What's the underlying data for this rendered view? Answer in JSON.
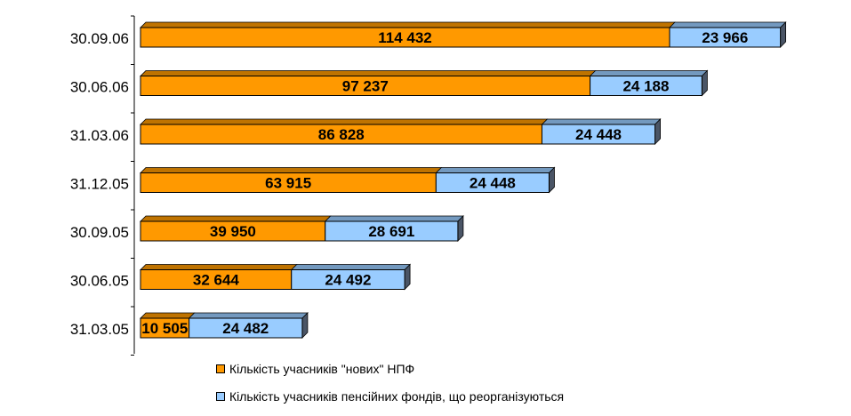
{
  "chart_data": {
    "type": "bar",
    "orientation": "horizontal",
    "stacked": true,
    "three_d": true,
    "categories": [
      "30.09.06",
      "30.06.06",
      "31.03.06",
      "31.12.05",
      "30.09.05",
      "30.06.05",
      "31.03.05"
    ],
    "series": [
      {
        "name": "Кількість учасників \"нових\" НПФ",
        "color": "#FF9900",
        "values": [
          114432,
          97237,
          86828,
          63915,
          39950,
          32644,
          10505
        ],
        "labels": [
          "114 432",
          "97 237",
          "86 828",
          "63 915",
          "39 950",
          "32 644",
          "10 505"
        ]
      },
      {
        "name": "Кількість учасників пенсійних фондів, що реорганізуються",
        "color": "#99CCFF",
        "values": [
          23966,
          24188,
          24448,
          24448,
          28691,
          24492,
          24482
        ],
        "labels": [
          "23 966",
          "24 188",
          "24 448",
          "24 448",
          "28 691",
          "24 492",
          "24 482"
        ]
      }
    ],
    "xlim": [
      0,
      140000
    ],
    "grid": false,
    "legend_position": "bottom"
  }
}
